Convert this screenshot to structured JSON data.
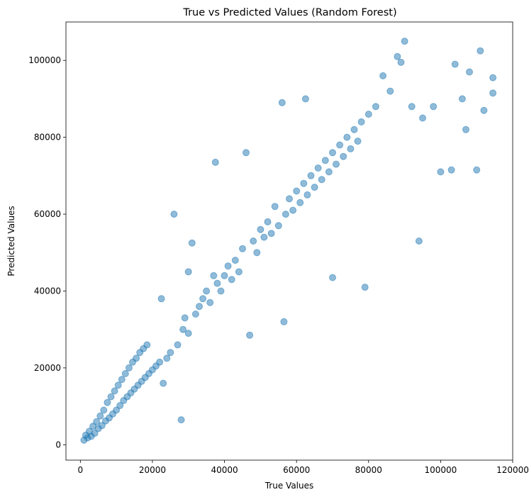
{
  "chart_data": {
    "type": "scatter",
    "title": "True vs Predicted Values (Random Forest)",
    "xlabel": "True Values",
    "ylabel": "Predicted Values",
    "xlim": [
      -4000,
      120000
    ],
    "ylim": [
      -4000,
      110000
    ],
    "xticks": [
      0,
      20000,
      40000,
      60000,
      80000,
      100000,
      120000
    ],
    "yticks": [
      0,
      20000,
      40000,
      60000,
      80000,
      100000
    ],
    "xtick_labels": [
      "0",
      "20000",
      "40000",
      "60000",
      "80000",
      "100000",
      "120000"
    ],
    "ytick_labels": [
      "0",
      "20000",
      "40000",
      "60000",
      "80000",
      "100000"
    ],
    "grid": false,
    "legend": "none",
    "marker_color": "#1f77b4",
    "marker_alpha": 0.5,
    "series": [
      {
        "points": [
          [
            1000,
            1200
          ],
          [
            1500,
            2500
          ],
          [
            2000,
            1800
          ],
          [
            2500,
            3500
          ],
          [
            3000,
            2200
          ],
          [
            3500,
            4800
          ],
          [
            4000,
            3000
          ],
          [
            4500,
            6000
          ],
          [
            5000,
            4200
          ],
          [
            5500,
            7500
          ],
          [
            6000,
            5000
          ],
          [
            6500,
            9000
          ],
          [
            7000,
            6200
          ],
          [
            7500,
            11000
          ],
          [
            8000,
            7000
          ],
          [
            8500,
            12500
          ],
          [
            9000,
            8000
          ],
          [
            9500,
            14000
          ],
          [
            10000,
            9000
          ],
          [
            10500,
            15500
          ],
          [
            11000,
            10200
          ],
          [
            11500,
            17000
          ],
          [
            12000,
            11500
          ],
          [
            12500,
            18500
          ],
          [
            13000,
            12500
          ],
          [
            13500,
            20000
          ],
          [
            14000,
            13500
          ],
          [
            14500,
            21500
          ],
          [
            15000,
            14500
          ],
          [
            15500,
            22500
          ],
          [
            16000,
            15500
          ],
          [
            16500,
            24000
          ],
          [
            17000,
            16500
          ],
          [
            17500,
            25000
          ],
          [
            18000,
            17500
          ],
          [
            18500,
            26000
          ],
          [
            19000,
            18500
          ],
          [
            20000,
            19500
          ],
          [
            21000,
            20500
          ],
          [
            22000,
            21500
          ],
          [
            22500,
            38000
          ],
          [
            23000,
            16000
          ],
          [
            24000,
            22500
          ],
          [
            25000,
            24000
          ],
          [
            26000,
            60000
          ],
          [
            27000,
            26000
          ],
          [
            28000,
            6500
          ],
          [
            28500,
            30000
          ],
          [
            29000,
            33000
          ],
          [
            30000,
            29000
          ],
          [
            30000,
            45000
          ],
          [
            31000,
            52500
          ],
          [
            32000,
            34000
          ],
          [
            33000,
            36000
          ],
          [
            34000,
            38000
          ],
          [
            35000,
            40000
          ],
          [
            36000,
            37000
          ],
          [
            37000,
            44000
          ],
          [
            37500,
            73500
          ],
          [
            38000,
            42000
          ],
          [
            39000,
            40000
          ],
          [
            40000,
            44000
          ],
          [
            41000,
            46500
          ],
          [
            42000,
            43000
          ],
          [
            43000,
            48000
          ],
          [
            44000,
            45000
          ],
          [
            45000,
            51000
          ],
          [
            46000,
            76000
          ],
          [
            47000,
            28500
          ],
          [
            48000,
            53000
          ],
          [
            49000,
            50000
          ],
          [
            50000,
            56000
          ],
          [
            51000,
            54000
          ],
          [
            52000,
            58000
          ],
          [
            53000,
            55000
          ],
          [
            54000,
            62000
          ],
          [
            55000,
            57000
          ],
          [
            56000,
            89000
          ],
          [
            56500,
            32000
          ],
          [
            57000,
            60000
          ],
          [
            58000,
            64000
          ],
          [
            59000,
            61000
          ],
          [
            60000,
            66000
          ],
          [
            61000,
            63000
          ],
          [
            62000,
            68000
          ],
          [
            62500,
            90000
          ],
          [
            63000,
            65000
          ],
          [
            64000,
            70000
          ],
          [
            65000,
            67000
          ],
          [
            66000,
            72000
          ],
          [
            67000,
            69000
          ],
          [
            68000,
            74000
          ],
          [
            69000,
            71000
          ],
          [
            70000,
            43500
          ],
          [
            70000,
            76000
          ],
          [
            71000,
            73000
          ],
          [
            72000,
            78000
          ],
          [
            73000,
            75000
          ],
          [
            74000,
            80000
          ],
          [
            75000,
            77000
          ],
          [
            76000,
            82000
          ],
          [
            77000,
            79000
          ],
          [
            78000,
            84000
          ],
          [
            79000,
            41000
          ],
          [
            80000,
            86000
          ],
          [
            82000,
            88000
          ],
          [
            84000,
            96000
          ],
          [
            86000,
            92000
          ],
          [
            88000,
            101000
          ],
          [
            89000,
            99500
          ],
          [
            90000,
            105000
          ],
          [
            92000,
            88000
          ],
          [
            94000,
            53000
          ],
          [
            95000,
            85000
          ],
          [
            98000,
            88000
          ],
          [
            100000,
            71000
          ],
          [
            103000,
            71500
          ],
          [
            104000,
            99000
          ],
          [
            106000,
            90000
          ],
          [
            107000,
            82000
          ],
          [
            108000,
            97000
          ],
          [
            110000,
            71500
          ],
          [
            111000,
            102500
          ],
          [
            112000,
            87000
          ],
          [
            114500,
            95500
          ],
          [
            114500,
            91500
          ]
        ]
      }
    ]
  }
}
